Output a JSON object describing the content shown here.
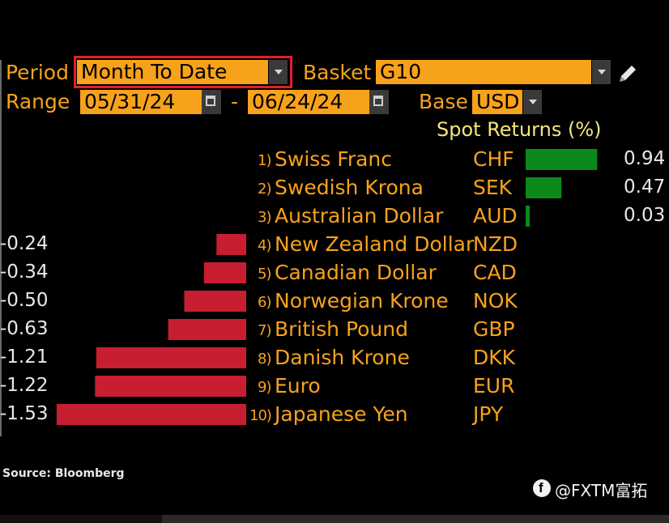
{
  "header": {
    "period_label": "Period",
    "period_value": "Month To Date",
    "basket_label": "Basket",
    "basket_value": "G10",
    "range_label": "Range",
    "range_start": "05/31/24",
    "range_sep": "-",
    "range_end": "06/24/24",
    "base_label": "Base",
    "base_value": "USD",
    "column_title": "Spot Returns (%)"
  },
  "colors": {
    "accent": "#f7a21b",
    "positive": "#0b8a1a",
    "negative": "#c81e32",
    "highlight_border": "#e0202a"
  },
  "chart_data": {
    "type": "bar",
    "title": "Spot Returns (%)",
    "categories": [
      "Swiss Franc",
      "Swedish Krona",
      "Australian Dollar",
      "New Zealand Dollar",
      "Canadian Dollar",
      "Norwegian Krone",
      "British Pound",
      "Danish Krone",
      "Euro",
      "Japanese Yen"
    ],
    "ranks": [
      "1)",
      "2)",
      "3)",
      "4)",
      "5)",
      "6)",
      "7)",
      "8)",
      "9)",
      "10)"
    ],
    "codes": [
      "CHF",
      "SEK",
      "AUD",
      "NZD",
      "CAD",
      "NOK",
      "GBP",
      "DKK",
      "EUR",
      "JPY"
    ],
    "values": [
      0.94,
      0.47,
      0.03,
      -0.24,
      -0.34,
      -0.5,
      -0.63,
      -1.21,
      -1.22,
      -1.53
    ],
    "value_labels": [
      "0.94",
      "0.47",
      "0.03",
      "-0.24",
      "-0.34",
      "-0.50",
      "-0.63",
      "-1.21",
      "-1.22",
      "-1.53"
    ]
  },
  "footer": {
    "source": "Source: Bloomberg",
    "watermark": "@FXTM富拓"
  }
}
